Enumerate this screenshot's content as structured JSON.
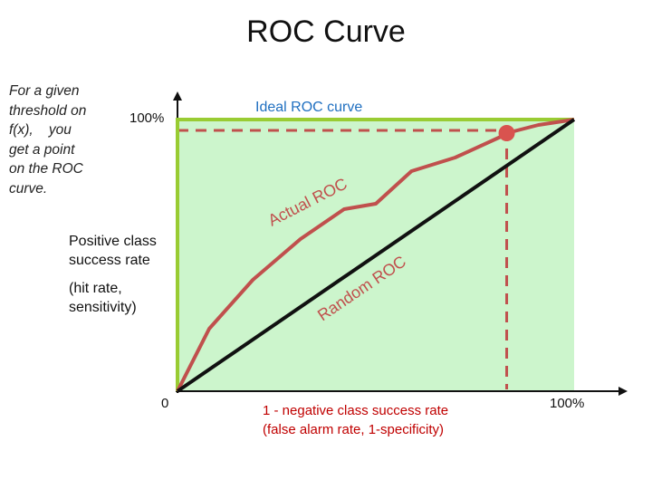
{
  "title": "ROC Curve",
  "note": [
    "For a given",
    "threshold on",
    "f(x),    you",
    "get a point",
    "on the ROC",
    "curve."
  ],
  "y_axis": {
    "top_tick": "100%",
    "origin_tick": "0",
    "label_lines": [
      "Positive class",
      "success rate",
      "",
      "(hit rate,",
      "sensitivity)"
    ]
  },
  "x_axis": {
    "end_tick": "100%",
    "label_lines": [
      "1 - negative class success rate",
      "(false alarm rate, 1-specificity)"
    ]
  },
  "curve_labels": {
    "ideal": "Ideal ROC curve",
    "actual": "Actual ROC",
    "random": "Random ROC"
  },
  "colors": {
    "fill": "#ccf5cc",
    "ideal": "#99cc33",
    "actual": "#c0504d",
    "random": "#111111",
    "threshold_point": "#d9534f"
  },
  "chart_data": {
    "type": "line",
    "xlabel": "1 - negative class success rate (false alarm rate, 1-specificity)",
    "ylabel": "Positive class success rate (hit rate, sensitivity)",
    "xlim": [
      0,
      1
    ],
    "ylim": [
      0,
      1
    ],
    "series": [
      {
        "name": "Ideal ROC curve",
        "x": [
          0,
          0,
          1
        ],
        "y": [
          0,
          1,
          1
        ]
      },
      {
        "name": "Actual ROC",
        "x": [
          0,
          0.08,
          0.19,
          0.31,
          0.42,
          0.5,
          0.59,
          0.7,
          0.82,
          0.83,
          0.91,
          1.0
        ],
        "y": [
          0,
          0.23,
          0.41,
          0.56,
          0.67,
          0.69,
          0.81,
          0.86,
          0.94,
          0.95,
          0.98,
          1.0
        ]
      },
      {
        "name": "Random ROC",
        "x": [
          0,
          1
        ],
        "y": [
          0,
          1
        ]
      }
    ],
    "threshold_point": {
      "x": 0.83,
      "y": 0.95
    }
  }
}
